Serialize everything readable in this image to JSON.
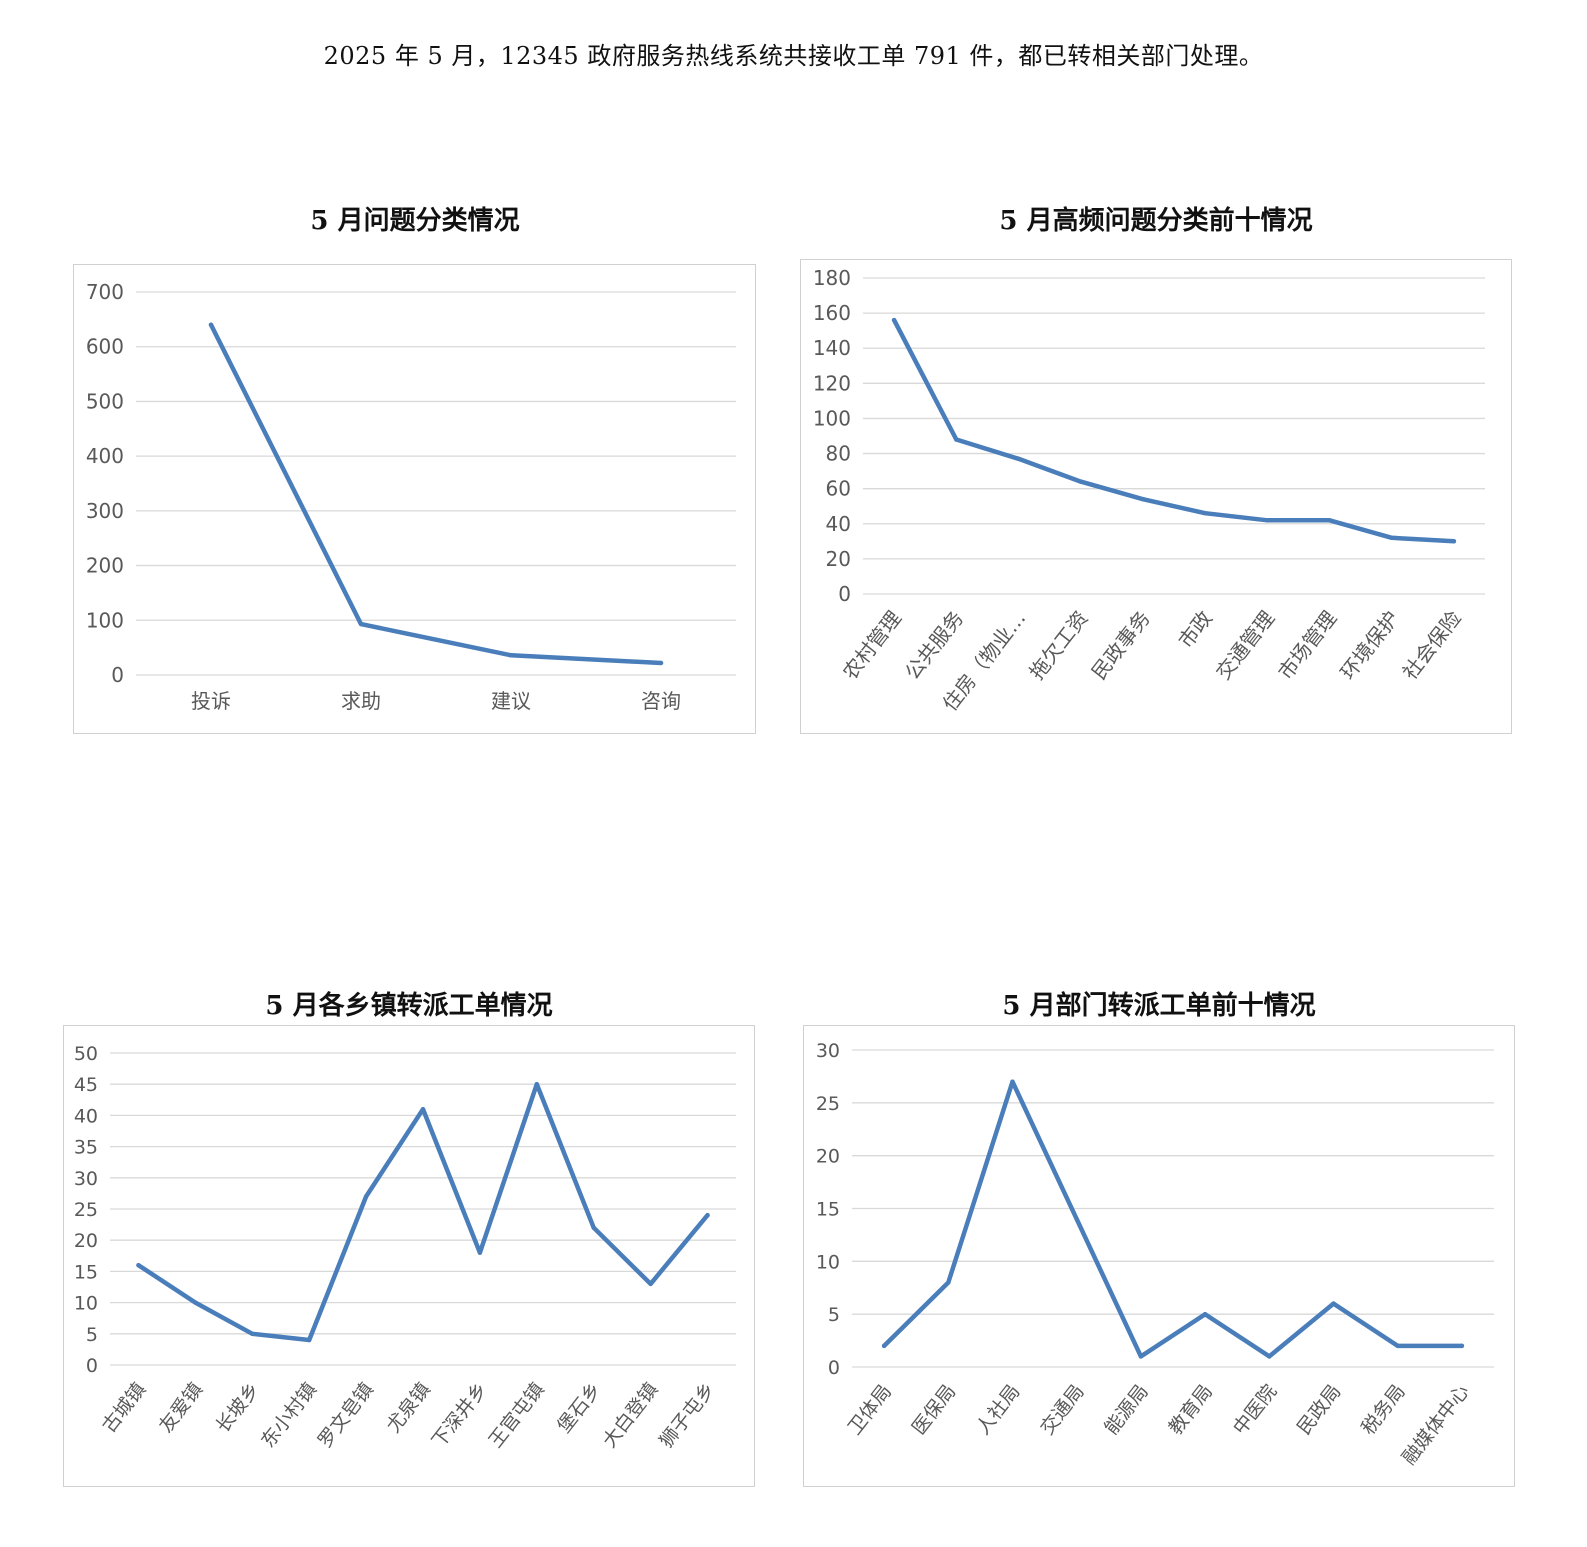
{
  "intro_text": "2025 年 5 月，12345 政府服务热线系统共接收工单 791 件，都已转相关部门处理。",
  "colors": {
    "line": "#4a7ebb",
    "grid": "#d9d9d9",
    "axis_text": "#595959"
  },
  "chart_data": [
    {
      "type": "line",
      "title": "5 月问题分类情况",
      "categories": [
        "投诉",
        "求助",
        "建议",
        "咨询"
      ],
      "values": [
        640,
        93,
        36,
        22
      ],
      "yticks": [
        0,
        100,
        200,
        300,
        400,
        500,
        600,
        700
      ],
      "ylim": [
        0,
        700
      ],
      "grid": true,
      "legend": "none"
    },
    {
      "type": "line",
      "title": "5 月高频问题分类前十情况",
      "categories": [
        "农村管理",
        "公共服务",
        "住房（物业…",
        "拖欠工资",
        "民政事务",
        "市政",
        "交通管理",
        "市场管理",
        "环境保护",
        "社会保险"
      ],
      "values": [
        156,
        88,
        77,
        64,
        54,
        46,
        42,
        42,
        32,
        30
      ],
      "yticks": [
        0,
        20,
        40,
        60,
        80,
        100,
        120,
        140,
        160,
        180
      ],
      "ylim": [
        0,
        180
      ],
      "grid": true,
      "legend": "none"
    },
    {
      "type": "line",
      "title": "5 月各乡镇转派工单情况",
      "categories": [
        "古城镇",
        "友爱镇",
        "长坡乡",
        "东小村镇",
        "罗文皂镇",
        "尤泉镇",
        "下深井乡",
        "王官屯镇",
        "堡石乡",
        "大白登镇",
        "狮子屯乡"
      ],
      "values": [
        16,
        10,
        5,
        4,
        27,
        41,
        18,
        45,
        22,
        13,
        24
      ],
      "yticks": [
        0,
        5,
        10,
        15,
        20,
        25,
        30,
        35,
        40,
        45,
        50
      ],
      "ylim": [
        0,
        50
      ],
      "grid": true,
      "legend": "none"
    },
    {
      "type": "line",
      "title": "5 月部门转派工单前十情况",
      "categories": [
        "卫体局",
        "医保局",
        "人社局",
        "交通局",
        "能源局",
        "教育局",
        "中医院",
        "民政局",
        "税务局",
        "融媒体中心"
      ],
      "values": [
        2,
        8,
        27,
        14,
        1,
        5,
        1,
        6,
        2,
        2
      ],
      "yticks": [
        0,
        5,
        10,
        15,
        20,
        25,
        30
      ],
      "ylim": [
        0,
        30
      ],
      "grid": true,
      "legend": "none"
    }
  ]
}
